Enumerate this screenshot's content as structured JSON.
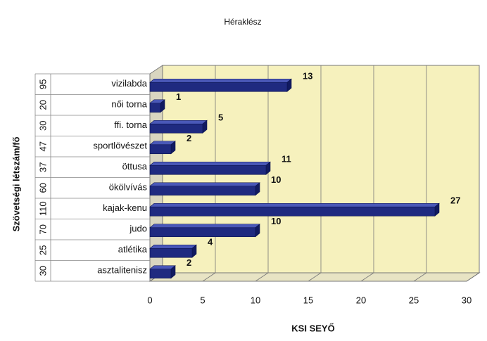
{
  "chart_data": {
    "type": "bar",
    "orientation": "horizontal",
    "title": "Héraklész",
    "x_label": "KSI SEYŐ",
    "y_label": "Szövetségi létszám/fő",
    "categories": [
      "vizilabda",
      "női torna",
      "ffi. torna",
      "sportlövészet",
      "öttusa",
      "ökölvívás",
      "kajak-kenu",
      "judo",
      "atlétika",
      "asztalitenisz"
    ],
    "group_labels": [
      "95",
      "20",
      "30",
      "47",
      "37",
      "60",
      "110",
      "70",
      "25",
      "30"
    ],
    "values": [
      13,
      1,
      5,
      2,
      11,
      10,
      27,
      10,
      4,
      2
    ],
    "color": "#1f2a80",
    "xlim": [
      0,
      30
    ],
    "xticks": [
      0,
      5,
      10,
      15,
      20,
      25,
      30
    ],
    "grid": true
  }
}
